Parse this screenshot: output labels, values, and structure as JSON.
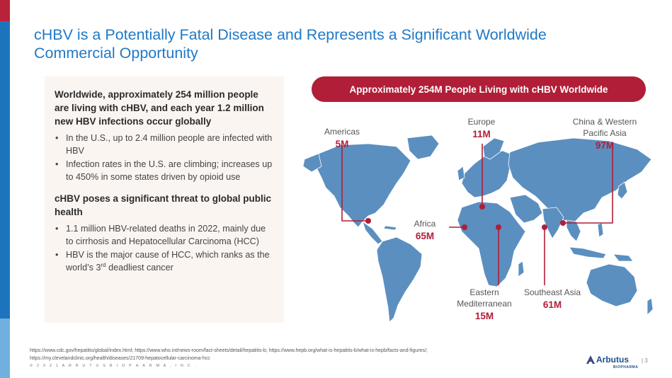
{
  "title": "cHBV is a Potentially Fatal Disease and Represents a Significant Worldwide Commercial Opportunity",
  "left_panel": {
    "heading1": "Worldwide, approximately 254 million people are living with cHBV, and each year 1.2 million new HBV infections occur globally",
    "bullets1": [
      "In the U.S., up to 2.4 million people are infected with HBV",
      "Infection rates in the U.S. are climbing; increases up to 450% in some states driven by opioid use"
    ],
    "heading2": "cHBV poses a significant threat to global public health",
    "bullets2": [
      "1.1 million HBV-related deaths in 2022, mainly due to cirrhosis and Hepatocellular Carcinoma (HCC)"
    ],
    "bullet3_pre": "HBV is the major cause of HCC, which ranks as the world’s 3",
    "bullet3_sup": "rd",
    "bullet3_post": " deadliest cancer"
  },
  "banner": "Approximately 254M People Living with cHBV Worldwide",
  "regions": {
    "americas": {
      "name": "Americas",
      "value": "5M"
    },
    "europe": {
      "name": "Europe",
      "value": "11M"
    },
    "china": {
      "name1": "China & Western",
      "name2": "Pacific Asia",
      "value": "97M"
    },
    "africa": {
      "name": "Africa",
      "value": "65M"
    },
    "eastern_med": {
      "name1": "Eastern",
      "name2": "Mediterranean",
      "value": "15M"
    },
    "se_asia": {
      "name": "Southeast Asia",
      "value": "61M"
    }
  },
  "colors": {
    "accent_red": "#b01e37",
    "map_blue": "#5b8fc0",
    "title_blue": "#1f79c8"
  },
  "sources": {
    "line1": "https://www.cdc.gov/hepatitis/global/index.html; https://www.who.int/news-room/fact-sheets/detail/hepatitis-b; https://www.hepb.org/what-is-hepatitis-b/what-is-hepb/facts-and-figures/;",
    "line2": "https://my.clevelandclinic.org/health/diseases/21709-hepatocellular-carcinoma-hcc"
  },
  "copyright": "© 2 0 2 1   A R B U T U S   B I O P H A R M A ,   I N C .",
  "logo": {
    "word": "Arbutus",
    "sub": "BIOPHARMA",
    "icon": "arbutus-logo-icon"
  },
  "page_number": "| 3"
}
